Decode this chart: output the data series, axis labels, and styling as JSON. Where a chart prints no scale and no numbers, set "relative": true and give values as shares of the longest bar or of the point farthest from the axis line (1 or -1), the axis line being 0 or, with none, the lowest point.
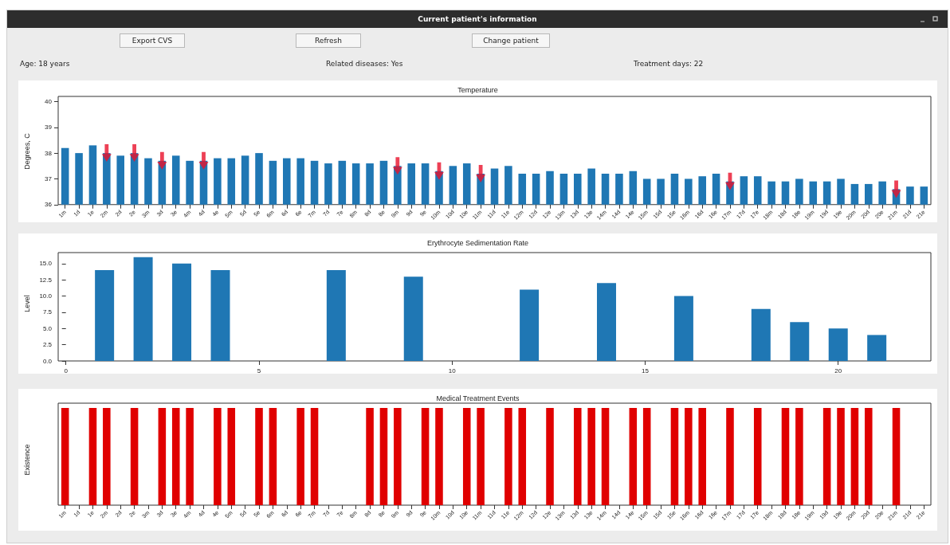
{
  "chart_data": [
    {
      "type": "other",
      "title": "Current patient's information",
      "annotations": [
        "Export CVS",
        "Refresh",
        "Change patient",
        "Age: 18 years",
        "Related diseases: Yes",
        "Treatment days: 22"
      ]
    },
    {
      "type": "bar",
      "title": "Temperature",
      "ylabel": "Degrees, C",
      "categories": [
        "1m",
        "1d",
        "1e",
        "2m",
        "2d",
        "2e",
        "3m",
        "3d",
        "3e",
        "4m",
        "4d",
        "4e",
        "5m",
        "5d",
        "5e",
        "6m",
        "6d",
        "6e",
        "7m",
        "7d",
        "7e",
        "8m",
        "8d",
        "8e",
        "9m",
        "9d",
        "9e",
        "10m",
        "10d",
        "10e",
        "11m",
        "11d",
        "11e",
        "12m",
        "12d",
        "12e",
        "13m",
        "13d",
        "13e",
        "14m",
        "14d",
        "14e",
        "15m",
        "15d",
        "15e",
        "16m",
        "16d",
        "16e",
        "17m",
        "17d",
        "17e",
        "18m",
        "18d",
        "18e",
        "19m",
        "19d",
        "19e",
        "20m",
        "20d",
        "20e",
        "21m",
        "21d",
        "21e"
      ],
      "series": [
        {
          "type": "bar",
          "color": "#1f77b4",
          "values": [
            38.2,
            38.0,
            38.3,
            38.0,
            37.9,
            38.0,
            37.8,
            37.7,
            37.9,
            37.7,
            37.7,
            37.8,
            37.8,
            37.9,
            38.0,
            37.7,
            37.8,
            37.8,
            37.7,
            37.6,
            37.7,
            37.6,
            37.6,
            37.7,
            37.5,
            37.6,
            37.6,
            37.3,
            37.5,
            37.6,
            37.2,
            37.4,
            37.5,
            37.2,
            37.2,
            37.3,
            37.2,
            37.2,
            37.4,
            37.2,
            37.2,
            37.3,
            37.0,
            37.0,
            37.2,
            37.0,
            37.1,
            37.2,
            36.9,
            37.1,
            37.1,
            36.9,
            36.9,
            37.0,
            36.9,
            36.9,
            37.0,
            36.8,
            36.8,
            36.9,
            36.6,
            36.7,
            36.7
          ]
        },
        {
          "type": "scatter",
          "color": "#e8102a",
          "x": [
            "2m",
            "2e",
            "3d",
            "4d",
            "9m",
            "10m",
            "11m",
            "17m",
            "21m"
          ],
          "values": [
            38.0,
            38.0,
            37.7,
            37.7,
            37.5,
            37.3,
            37.2,
            36.9,
            36.6
          ]
        }
      ],
      "ylim": [
        36,
        40.2
      ],
      "yticks": [
        36,
        37,
        38,
        39,
        40
      ],
      "grid": false
    },
    {
      "type": "bar",
      "title": "Erythrocyte Sedimentation Rate",
      "ylabel": "Level",
      "x": [
        1,
        2,
        3,
        4,
        7,
        9,
        12,
        14,
        16,
        18,
        19,
        20,
        21
      ],
      "values": [
        14,
        16,
        15,
        14,
        14,
        13,
        11,
        12,
        10,
        8,
        6,
        5,
        4
      ],
      "color": "#1f77b4",
      "xlim": [
        -0.2,
        22.4
      ],
      "xticks": [
        0,
        5,
        10,
        15,
        20
      ],
      "ylim": [
        0,
        16.7
      ],
      "yticks": [
        {
          "value": 0,
          "label": "0.0"
        },
        {
          "value": 2.5,
          "label": "2.5"
        },
        {
          "value": 5,
          "label": "5.0"
        },
        {
          "value": 7.5,
          "label": "7.5"
        },
        {
          "value": 10,
          "label": "10.0"
        },
        {
          "value": 12.5,
          "label": "12.5"
        },
        {
          "value": 15,
          "label": "15.0"
        }
      ],
      "grid": false
    },
    {
      "type": "bar",
      "title": "Medical Treatment Events",
      "ylabel": "Existence",
      "relative": true,
      "tick_labels": "x",
      "categories": [
        "1m",
        "1d",
        "1e",
        "2m",
        "2d",
        "2e",
        "3m",
        "3d",
        "3e",
        "4m",
        "4d",
        "4e",
        "5m",
        "5d",
        "5e",
        "6m",
        "6d",
        "6e",
        "7m",
        "7d",
        "7e",
        "8m",
        "8d",
        "8e",
        "9m",
        "9d",
        "9e",
        "10m",
        "10d",
        "10e",
        "11m",
        "11d",
        "11e",
        "12m",
        "12d",
        "12e",
        "13m",
        "13d",
        "13e",
        "14m",
        "14d",
        "14e",
        "15m",
        "15d",
        "15e",
        "16m",
        "16d",
        "16e",
        "17m",
        "17d",
        "17e",
        "18m",
        "18d",
        "18e",
        "19m",
        "19d",
        "19e",
        "20m",
        "20d",
        "20e",
        "21m",
        "21d",
        "21e"
      ],
      "values": [
        1,
        0,
        1,
        1,
        0,
        1,
        0,
        1,
        1,
        1,
        0,
        1,
        1,
        0,
        1,
        1,
        0,
        1,
        1,
        0,
        0,
        0,
        1,
        1,
        1,
        0,
        1,
        1,
        0,
        1,
        1,
        0,
        1,
        1,
        0,
        1,
        0,
        1,
        1,
        1,
        0,
        1,
        1,
        0,
        1,
        1,
        1,
        0,
        1,
        0,
        1,
        0,
        1,
        1,
        0,
        1,
        1,
        1,
        1,
        0,
        1,
        0,
        0
      ],
      "color": "#e00000",
      "grid": false
    }
  ]
}
